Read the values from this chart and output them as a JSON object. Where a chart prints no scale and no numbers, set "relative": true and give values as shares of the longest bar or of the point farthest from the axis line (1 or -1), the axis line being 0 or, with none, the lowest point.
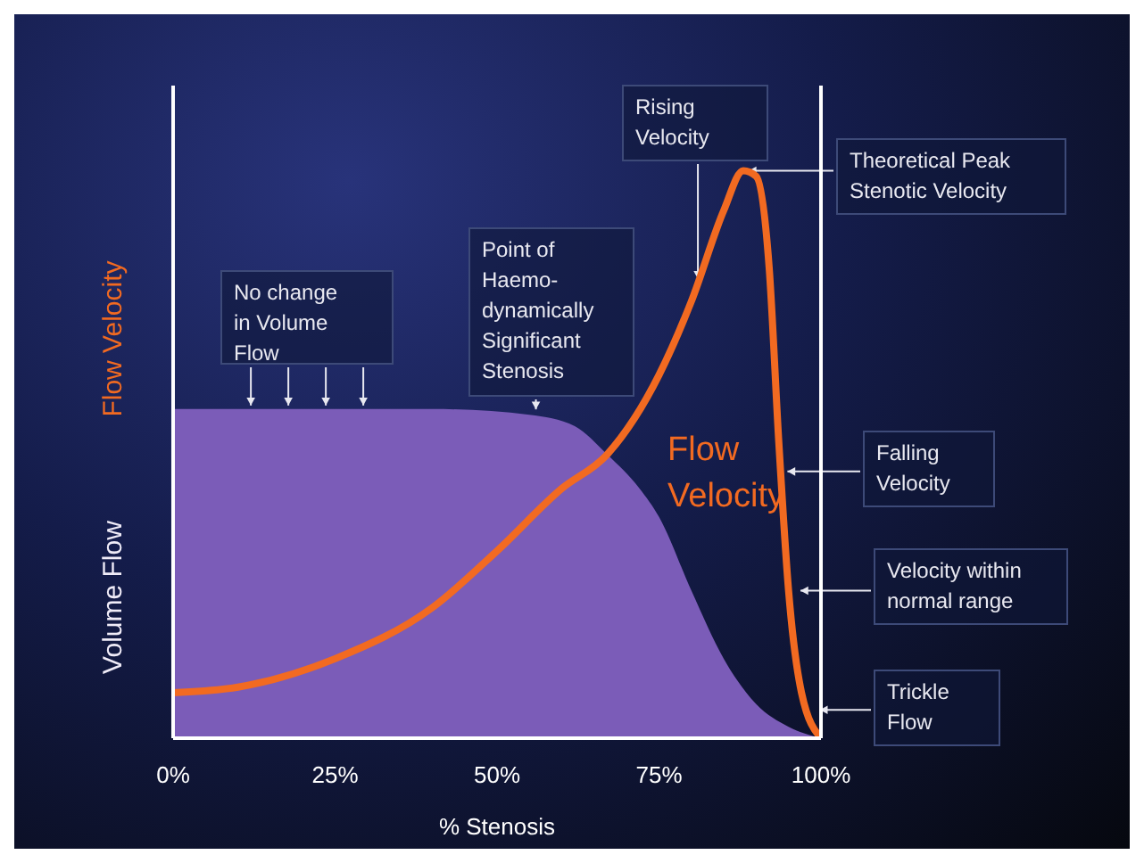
{
  "chart_data": {
    "type": "area",
    "relative": true,
    "xlabel": "% Stenosis",
    "xlim": [
      0,
      100
    ],
    "xticks": [
      {
        "value": 0,
        "label": "0%"
      },
      {
        "value": 25,
        "label": "25%"
      },
      {
        "value": 50,
        "label": "50%"
      },
      {
        "value": 75,
        "label": "75%"
      },
      {
        "value": 100,
        "label": "100%"
      }
    ],
    "series": [
      {
        "name": "Volume Flow",
        "color": "#7b5cb8",
        "x": [
          0,
          10,
          25,
          40,
          55,
          62,
          67,
          72,
          75,
          80,
          85,
          90,
          95,
          100
        ],
        "values": [
          0.58,
          0.58,
          0.58,
          0.58,
          0.57,
          0.55,
          0.5,
          0.44,
          0.39,
          0.26,
          0.14,
          0.06,
          0.02,
          0
        ]
      },
      {
        "name": "Flow Velocity",
        "type": "line",
        "color": "#f26a21",
        "x": [
          0,
          10,
          25,
          40,
          50,
          60,
          67,
          75,
          80,
          85,
          88,
          90,
          92,
          93.5,
          95,
          97,
          100
        ],
        "values": [
          0.08,
          0.09,
          0.14,
          0.23,
          0.33,
          0.44,
          0.5,
          0.64,
          0.77,
          0.93,
          1,
          0.99,
          0.83,
          0.52,
          0.26,
          0.08,
          0
        ]
      }
    ],
    "ref_lines": [
      {
        "axis": "x",
        "value": 100,
        "color": "#ffffff"
      }
    ],
    "annotations": [
      {
        "text": "No change in Volume Flow",
        "x": 12,
        "y": 0.58
      },
      {
        "text": "Point of Haemo-dynamically Significant Stenosis",
        "x": 56,
        "y": 0.57
      },
      {
        "text": "Rising Velocity",
        "x": 81,
        "y": 0.8
      },
      {
        "text": "Theoretical Peak Stenotic Velocity",
        "x": 88,
        "y": 1
      },
      {
        "text": "Falling Velocity",
        "x": 94,
        "y": 0.47
      },
      {
        "text": "Velocity within normal range",
        "x": 96,
        "y": 0.26
      },
      {
        "text": "Trickle Flow",
        "x": 99,
        "y": 0.05
      }
    ]
  }
}
